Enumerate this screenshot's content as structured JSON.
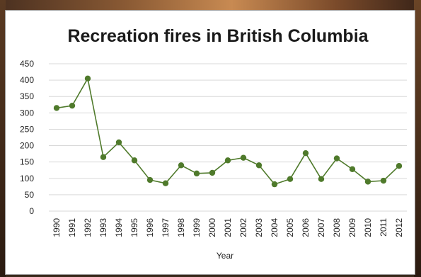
{
  "chart_data": {
    "type": "line",
    "title": "Recreation fires in British Columbia",
    "xlabel": "Year",
    "ylabel": "",
    "ylim": [
      0,
      450
    ],
    "yticks": [
      0,
      50,
      100,
      150,
      200,
      250,
      300,
      350,
      400,
      450
    ],
    "grid": true,
    "legend": "none",
    "x": [
      "1990",
      "1991",
      "1992",
      "1993",
      "1994",
      "1995",
      "1996",
      "1997",
      "1998",
      "1999",
      "2000",
      "2001",
      "2002",
      "2003",
      "2004",
      "2005",
      "2006",
      "2007",
      "2008",
      "2009",
      "2010",
      "2011",
      "2012"
    ],
    "series": [
      {
        "color": "#4f7a2b",
        "values": [
          315,
          322,
          405,
          165,
          210,
          155,
          95,
          85,
          140,
          115,
          117,
          155,
          163,
          140,
          82,
          98,
          177,
          98,
          161,
          128,
          90,
          93,
          138
        ]
      }
    ]
  }
}
